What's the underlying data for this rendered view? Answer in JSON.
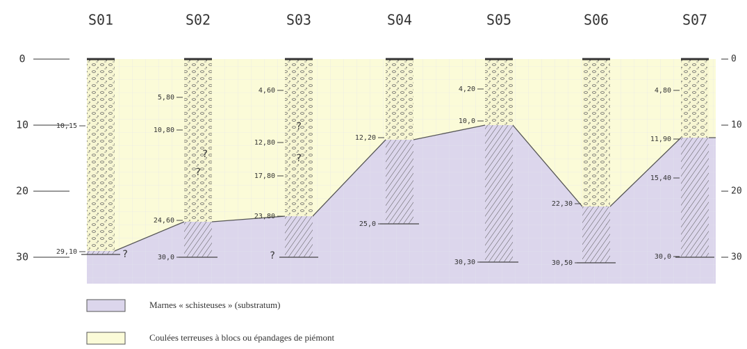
{
  "columns": [
    {
      "name": "S01",
      "labels": [
        "10,15",
        "29,10"
      ]
    },
    {
      "name": "S02",
      "labels": [
        "5,80",
        "10,80",
        "24,60",
        "30,0"
      ]
    },
    {
      "name": "S03",
      "labels": [
        "4,60",
        "12,80",
        "17,80",
        "23,80"
      ]
    },
    {
      "name": "S04",
      "labels": [
        "12,20",
        "25,0"
      ]
    },
    {
      "name": "S05",
      "labels": [
        "4,20",
        "10,0",
        "30,30"
      ]
    },
    {
      "name": "S06",
      "labels": [
        "22,30",
        "30,50"
      ]
    },
    {
      "name": "S07",
      "labels": [
        "4,80",
        "11,90",
        "15,40",
        "30,0"
      ]
    }
  ],
  "unknown_mark": "?",
  "depth_scale": {
    "left": [
      "0",
      "10",
      "20",
      "30"
    ],
    "right": [
      "0",
      "10",
      "20",
      "30"
    ]
  },
  "legend": [
    "Marnes « schisteuses » (substratum)",
    "Coulées terreuses à blocs ou épandages de piémont"
  ]
}
